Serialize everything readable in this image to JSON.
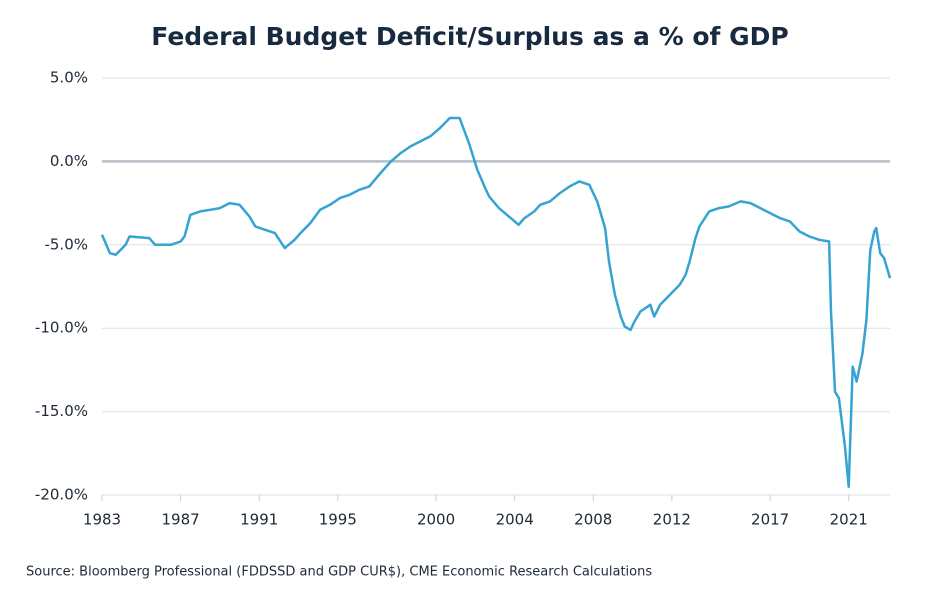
{
  "chart_data": {
    "type": "line",
    "title": "Federal Budget Deficit/Surplus as a % of GDP",
    "source": "Source: Bloomberg Professional (FDDSSD and GDP CUR$), CME Economic Research Calculations",
    "x": [
      1983.0,
      1983.4,
      1983.7,
      1984.2,
      1984.4,
      1985.4,
      1985.7,
      1986.5,
      1987.0,
      1987.2,
      1987.5,
      1988.0,
      1988.5,
      1989.0,
      1989.5,
      1990.0,
      1990.5,
      1990.8,
      1991.3,
      1991.8,
      1992.3,
      1992.8,
      1993.1,
      1993.6,
      1994.1,
      1994.6,
      1995.1,
      1995.6,
      1996.1,
      1996.6,
      1997.1,
      1997.7,
      1998.2,
      1998.7,
      1999.2,
      1999.7,
      2000.2,
      2000.7,
      2001.2,
      2001.7,
      2002.1,
      2002.5,
      2002.7,
      2003.2,
      2003.8,
      2004.2,
      2004.5,
      2005.0,
      2005.3,
      2005.8,
      2006.3,
      2006.8,
      2007.3,
      2007.8,
      2008.2,
      2008.6,
      2008.8,
      2009.1,
      2009.4,
      2009.6,
      2009.9,
      2010.1,
      2010.4,
      2010.9,
      2011.1,
      2011.4,
      2011.9,
      2012.4,
      2012.7,
      2012.9,
      2013.2,
      2013.4,
      2013.9,
      2014.4,
      2014.9,
      2015.5,
      2016.0,
      2016.5,
      2017.0,
      2017.5,
      2018.0,
      2018.5,
      2019.0,
      2019.5,
      2020.0,
      2020.1,
      2020.3,
      2020.5,
      2020.8,
      2021.0,
      2021.2,
      2021.4,
      2021.7,
      2021.9,
      2022.1,
      2022.3,
      2022.4,
      2022.6,
      2022.8,
      2023.1
    ],
    "series": [
      {
        "color": "#36a3d2",
        "values": [
          -4.4,
          -5.5,
          -5.6,
          -5.0,
          -4.5,
          -4.6,
          -5.0,
          -5.0,
          -4.8,
          -4.5,
          -3.2,
          -3.0,
          -2.9,
          -2.8,
          -2.5,
          -2.6,
          -3.3,
          -3.9,
          -4.1,
          -4.3,
          -5.2,
          -4.7,
          -4.3,
          -3.7,
          -2.9,
          -2.6,
          -2.2,
          -2.0,
          -1.7,
          -1.5,
          -0.8,
          0.0,
          0.5,
          0.9,
          1.2,
          1.5,
          2.0,
          2.6,
          2.6,
          1.0,
          -0.5,
          -1.6,
          -2.1,
          -2.8,
          -3.4,
          -3.8,
          -3.4,
          -3.0,
          -2.6,
          -2.4,
          -1.9,
          -1.5,
          -1.2,
          -1.4,
          -2.4,
          -4.0,
          -6.0,
          -8.0,
          -9.3,
          -9.9,
          -10.1,
          -9.6,
          -9.0,
          -8.6,
          -9.3,
          -8.6,
          -8.0,
          -7.4,
          -6.8,
          -6.0,
          -4.6,
          -3.9,
          -3.0,
          -2.8,
          -2.7,
          -2.4,
          -2.5,
          -2.8,
          -3.1,
          -3.4,
          -3.6,
          -4.2,
          -4.5,
          -4.7,
          -4.8,
          -9.0,
          -13.8,
          -14.2,
          -17.0,
          -19.5,
          -12.3,
          -13.2,
          -11.5,
          -9.5,
          -5.3,
          -4.2,
          -4.0,
          -5.5,
          -5.8,
          -7.0
        ]
      }
    ],
    "xlim": [
      1983,
      2023.1
    ],
    "xticks": [
      1983,
      1987,
      1991,
      1995,
      2000,
      2004,
      2008,
      2012,
      2017,
      2021
    ],
    "ylim": [
      -20,
      5
    ],
    "yticks": [
      {
        "value": -20,
        "label": "-20.0%"
      },
      {
        "value": -15,
        "label": "-15.0%"
      },
      {
        "value": -10,
        "label": "-10.0%"
      },
      {
        "value": -5,
        "label": "-5.0%"
      },
      {
        "value": 0,
        "label": "0.0%"
      },
      {
        "value": 5,
        "label": "5.0%"
      }
    ],
    "grid": true
  }
}
